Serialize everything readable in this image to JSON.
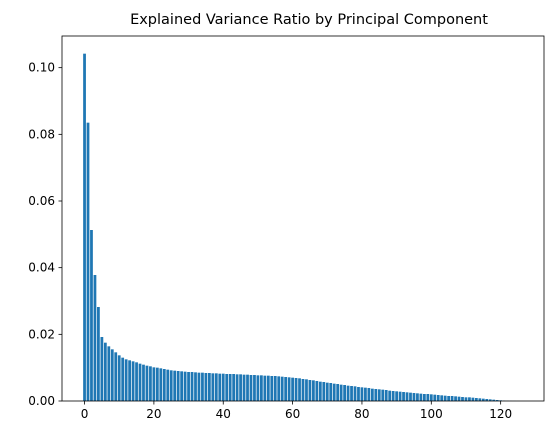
{
  "chart_data": {
    "type": "bar",
    "title": "Explained Variance Ratio by Principal Component",
    "xlabel": "",
    "ylabel": "",
    "xlim": [
      -6.5,
      132.5
    ],
    "ylim": [
      0,
      0.1095
    ],
    "x_ticks": [
      0,
      20,
      40,
      60,
      80,
      100,
      120
    ],
    "y_ticks": [
      0.0,
      0.02,
      0.04,
      0.06,
      0.08,
      0.1
    ],
    "x_tick_labels": [
      "0",
      "20",
      "40",
      "60",
      "80",
      "100",
      "120"
    ],
    "y_tick_labels": [
      "0.00",
      "0.02",
      "0.04",
      "0.06",
      "0.08",
      "0.10"
    ],
    "bar_color": "#1f77b4",
    "bar_width": 0.8,
    "x": [
      0,
      1,
      2,
      3,
      4,
      5,
      6,
      7,
      8,
      9,
      10,
      11,
      12,
      13,
      14,
      15,
      16,
      17,
      18,
      19,
      20,
      21,
      22,
      23,
      24,
      25,
      26,
      27,
      28,
      29,
      30,
      31,
      32,
      33,
      34,
      35,
      36,
      37,
      38,
      39,
      40,
      41,
      42,
      43,
      44,
      45,
      46,
      47,
      48,
      49,
      50,
      51,
      52,
      53,
      54,
      55,
      56,
      57,
      58,
      59,
      60,
      61,
      62,
      63,
      64,
      65,
      66,
      67,
      68,
      69,
      70,
      71,
      72,
      73,
      74,
      75,
      76,
      77,
      78,
      79,
      80,
      81,
      82,
      83,
      84,
      85,
      86,
      87,
      88,
      89,
      90,
      91,
      92,
      93,
      94,
      95,
      96,
      97,
      98,
      99,
      100,
      101,
      102,
      103,
      104,
      105,
      106,
      107,
      108,
      109,
      110,
      111,
      112,
      113,
      114,
      115,
      116,
      117,
      118,
      119,
      120,
      121,
      122,
      123,
      124,
      125
    ],
    "values": [
      0.1042,
      0.0835,
      0.0513,
      0.0378,
      0.0282,
      0.0192,
      0.0175,
      0.0164,
      0.0155,
      0.0146,
      0.0137,
      0.013,
      0.0125,
      0.0122,
      0.0119,
      0.0116,
      0.0112,
      0.0109,
      0.0106,
      0.0104,
      0.0101,
      0.01,
      0.0098,
      0.0096,
      0.0094,
      0.0092,
      0.0091,
      0.009,
      0.0089,
      0.0088,
      0.0087,
      0.0087,
      0.0086,
      0.0085,
      0.0085,
      0.0084,
      0.0084,
      0.0083,
      0.0083,
      0.0082,
      0.0082,
      0.0081,
      0.0081,
      0.0081,
      0.008,
      0.008,
      0.0079,
      0.0079,
      0.0078,
      0.0078,
      0.0077,
      0.0077,
      0.0076,
      0.0076,
      0.0075,
      0.0075,
      0.0074,
      0.0073,
      0.0072,
      0.0071,
      0.007,
      0.0069,
      0.0068,
      0.0066,
      0.0065,
      0.0063,
      0.0062,
      0.006,
      0.0058,
      0.0057,
      0.0055,
      0.0054,
      0.0052,
      0.0051,
      0.0049,
      0.0048,
      0.0046,
      0.0045,
      0.0044,
      0.0042,
      0.0041,
      0.004,
      0.0039,
      0.0037,
      0.0036,
      0.0035,
      0.0034,
      0.0033,
      0.0031,
      0.003,
      0.0029,
      0.0028,
      0.0027,
      0.0026,
      0.0025,
      0.0024,
      0.0023,
      0.0022,
      0.0021,
      0.0021,
      0.002,
      0.0019,
      0.0018,
      0.0017,
      0.0016,
      0.0015,
      0.0015,
      0.0014,
      0.0013,
      0.0012,
      0.0011,
      0.0011,
      0.001,
      0.0009,
      0.0008,
      0.0007,
      0.0006,
      0.0005,
      0.0004,
      0.0003,
      0.0002,
      0.0001,
      5e-05,
      3e-05,
      2e-05,
      1e-05
    ]
  }
}
